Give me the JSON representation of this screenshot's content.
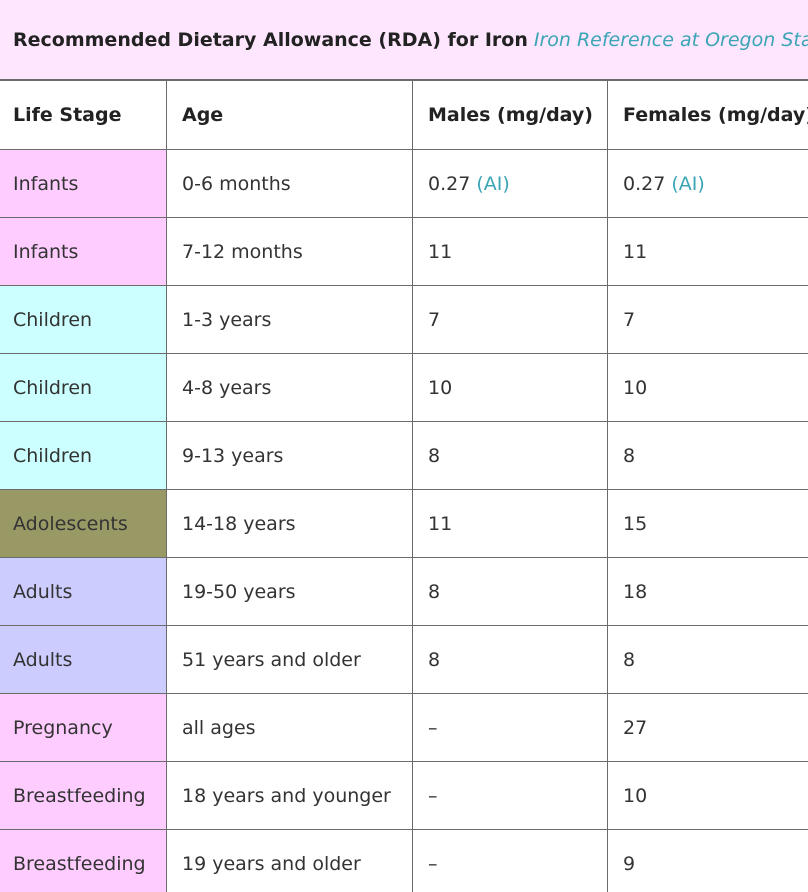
{
  "caption": {
    "title": "Recommended Dietary Allowance (RDA) for Iron",
    "reference_link": "Iron Reference at Oregon State"
  },
  "headers": {
    "life_stage": "Life Stage",
    "age": "Age",
    "males": "Males (mg/day)",
    "females": "Females (mg/day)"
  },
  "colors": {
    "caption_bg": "#ffe6ff",
    "link": "#3aa5b5",
    "infants": "#ffccff",
    "children": "#ccffff",
    "adolescents": "#999966",
    "adults": "#ccccff",
    "pregnancy": "#ffccff",
    "breastfeeding": "#ffccff"
  },
  "rows": [
    {
      "stage": "Infants",
      "group": "infants",
      "age": "0-6 months",
      "males": "0.27",
      "males_note": "(AI)",
      "females": "0.27",
      "females_note": "(AI)"
    },
    {
      "stage": "Infants",
      "group": "infants",
      "age": "7-12 months",
      "males": "11",
      "males_note": "",
      "females": "11",
      "females_note": ""
    },
    {
      "stage": "Children",
      "group": "children",
      "age": "1-3 years",
      "males": "7",
      "males_note": "",
      "females": "7",
      "females_note": ""
    },
    {
      "stage": "Children",
      "group": "children",
      "age": "4-8 years",
      "males": "10",
      "males_note": "",
      "females": "10",
      "females_note": ""
    },
    {
      "stage": "Children",
      "group": "children",
      "age": "9-13 years",
      "males": "8",
      "males_note": "",
      "females": "8",
      "females_note": ""
    },
    {
      "stage": "Adolescents",
      "group": "adolescents",
      "age": "14-18 years",
      "males": "11",
      "males_note": "",
      "females": "15",
      "females_note": ""
    },
    {
      "stage": "Adults",
      "group": "adults",
      "age": "19-50 years",
      "males": "8",
      "males_note": "",
      "females": "18",
      "females_note": ""
    },
    {
      "stage": "Adults",
      "group": "adults",
      "age": "51 years and older",
      "males": "8",
      "males_note": "",
      "females": "8",
      "females_note": ""
    },
    {
      "stage": "Pregnancy",
      "group": "pregnancy",
      "age": "all ages",
      "males": "–",
      "males_note": "",
      "females": "27",
      "females_note": ""
    },
    {
      "stage": "Breastfeeding",
      "group": "breastfeeding",
      "age": "18 years and younger",
      "males": "–",
      "males_note": "",
      "females": "10",
      "females_note": ""
    },
    {
      "stage": "Breastfeeding",
      "group": "breastfeeding",
      "age": "19 years and older",
      "males": "–",
      "males_note": "",
      "females": "9",
      "females_note": ""
    }
  ]
}
